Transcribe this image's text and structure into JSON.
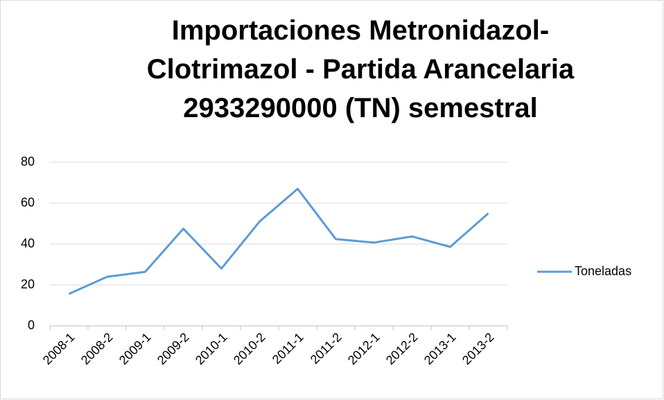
{
  "chart_data": {
    "type": "line",
    "title": "Importaciones Metronidazol-Clotrimazol - Partida Arancelaria 2933290000 (TN) semestral",
    "categories": [
      "2008-1",
      "2008-2",
      "2009-1",
      "2009-2",
      "2010-1",
      "2010-2",
      "2011-1",
      "2011-2",
      "2012-1",
      "2012-2",
      "2013-1",
      "2013-2"
    ],
    "series": [
      {
        "name": "Toneladas",
        "color": "#5b9bd5",
        "values": [
          15.6,
          24,
          26.4,
          47.5,
          28,
          51,
          67,
          42.4,
          40.7,
          43.7,
          38.6,
          55
        ]
      }
    ],
    "ylim": [
      0,
      80
    ],
    "yticks": [
      0,
      20,
      40,
      60,
      80
    ],
    "grid": true,
    "legend": "right"
  }
}
